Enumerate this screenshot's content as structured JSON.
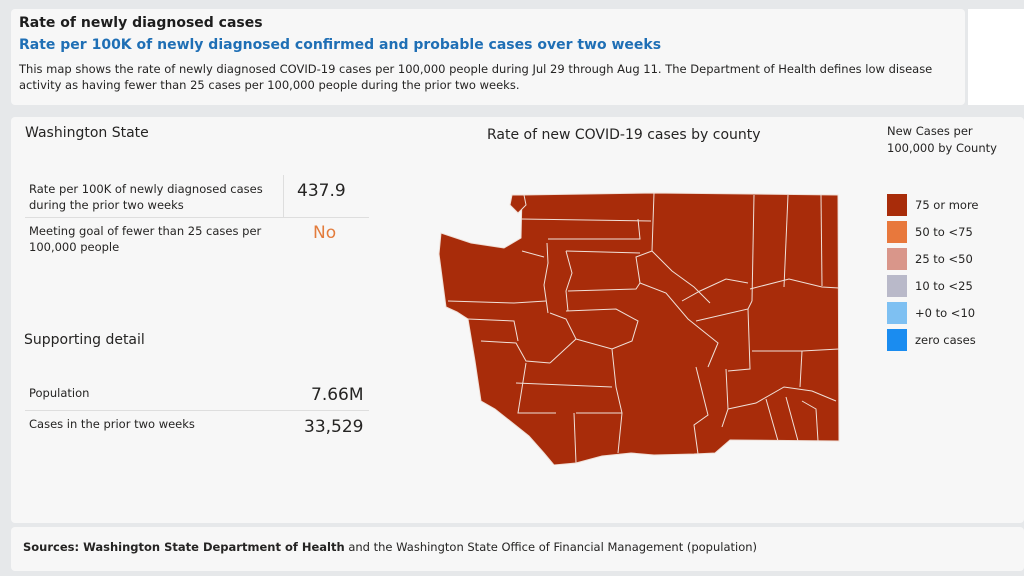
{
  "header": {
    "title": "Rate of newly diagnosed cases",
    "subtitle": "Rate per 100K of newly diagnosed confirmed and probable cases over two weeks",
    "description": "This map shows the rate of newly diagnosed COVID-19 cases per 100,000 people during Jul 29 through Aug 11. The Department of Health defines low disease activity as having fewer than 25 cases per 100,000 people during the prior two weeks."
  },
  "state_panel": {
    "title": "Washington State",
    "rate_label": "Rate per 100K of newly diagnosed cases during the prior two weeks",
    "rate_value": "437.9",
    "goal_label": "Meeting goal of fewer than 25 cases per 100,000 people",
    "goal_value": "No",
    "goal_color": "#e37c3c"
  },
  "supporting": {
    "title": "Supporting detail",
    "population_label": "Population",
    "population_value": "7.66M",
    "cases_label": "Cases in the prior two weeks",
    "cases_value": "33,529"
  },
  "map": {
    "title": "Rate of new COVID-19 cases by county",
    "county_fill": "#a82c0a",
    "county_stroke": "#f0e0d8"
  },
  "legend": {
    "title": "New Cases per 100,000 by County",
    "items": [
      {
        "label": "75 or more",
        "color": "#a82c0a"
      },
      {
        "label": "50 to <75",
        "color": "#e8783c"
      },
      {
        "label": "25 to <50",
        "color": "#d9968a"
      },
      {
        "label": "10 to <25",
        "color": "#b9b9c9"
      },
      {
        "label": "+0 to <10",
        "color": "#7ec0f2"
      },
      {
        "label": "zero cases",
        "color": "#1a8cf0"
      }
    ]
  },
  "footer": {
    "sources_prefix": "Sources: ",
    "sources_org1": "Washington State Department of Health",
    "sources_middle": " and the Washington State Office of Financial Management (population)"
  }
}
